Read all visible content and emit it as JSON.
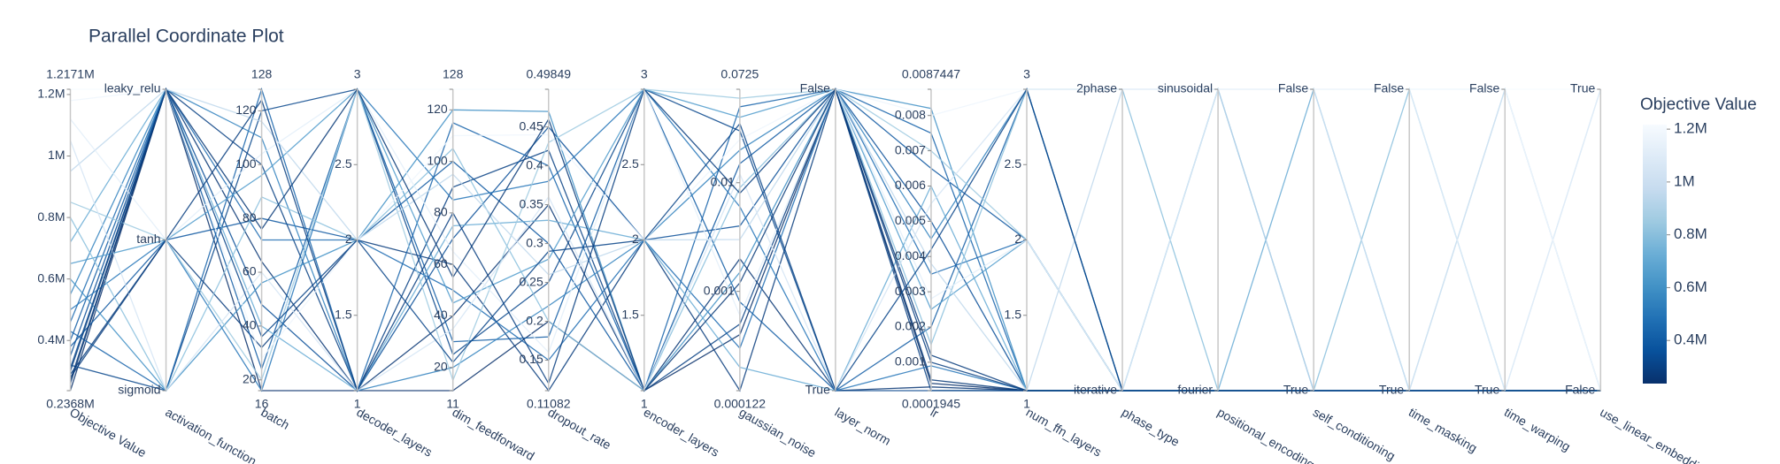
{
  "chart_data": {
    "type": "parcoords",
    "title": "Parallel Coordinate Plot",
    "colorscale": [
      "#08306b",
      "#08519c",
      "#2171b5",
      "#4292c6",
      "#6baed6",
      "#9ecae1",
      "#c6dbef",
      "#deebf7",
      "#f7fbff"
    ],
    "colorbar": {
      "title": "Objective Value"
    },
    "dimensions": [
      {
        "label": "Objective Value",
        "range": [
          {
            "value": 236800,
            "label": "0.2368M"
          },
          {
            "value": 1217100,
            "label": "1.2171M"
          }
        ],
        "ticks": [
          {
            "value": 400000,
            "label": "0.4M"
          },
          {
            "value": 600000,
            "label": "0.6M"
          },
          {
            "value": 800000,
            "label": "0.8M"
          },
          {
            "value": 1000000,
            "label": "1M"
          },
          {
            "value": 1200000,
            "label": "1.2M"
          }
        ]
      },
      {
        "label": "activation_function",
        "categories": [
          "sigmoid",
          "tanh",
          "leaky_relu"
        ]
      },
      {
        "label": "batch",
        "range": [
          16,
          128
        ],
        "ticks": [
          20,
          40,
          60,
          80,
          100,
          120
        ]
      },
      {
        "label": "decoder_layers",
        "range": [
          1,
          3
        ],
        "ticks": [
          1.5,
          2,
          2.5
        ]
      },
      {
        "label": "dim_feedforward",
        "range": [
          11,
          128
        ],
        "ticks": [
          20,
          40,
          60,
          80,
          100,
          120
        ]
      },
      {
        "label": "dropout_rate",
        "range": [
          0.11082,
          0.49849
        ],
        "ticks": [
          0.15,
          0.2,
          0.25,
          0.3,
          0.35,
          0.4,
          0.45
        ]
      },
      {
        "label": "encoder_layers",
        "range": [
          1,
          3
        ],
        "ticks": [
          1.5,
          2,
          2.5
        ]
      },
      {
        "label": "gaussian_noise",
        "range": [
          0.000122,
          0.0725
        ],
        "ticks": [
          0.001,
          0.01
        ],
        "log": true
      },
      {
        "label": "layer_norm",
        "categories": [
          "True",
          "False"
        ]
      },
      {
        "label": "lr",
        "range": [
          0.0001945,
          0.0087447
        ],
        "ticks": [
          0.001,
          0.002,
          0.003,
          0.004,
          0.005,
          0.006,
          0.007,
          0.008
        ]
      },
      {
        "label": "num_ffn_layers",
        "range": [
          1,
          3
        ],
        "ticks": [
          1.5,
          2,
          2.5
        ]
      },
      {
        "label": "phase_type",
        "categories": [
          "iterative",
          "2phase"
        ]
      },
      {
        "label": "positional_encoding",
        "categories": [
          "fourier",
          "sinusoidal"
        ]
      },
      {
        "label": "self_conditioning",
        "categories": [
          "True",
          "False"
        ]
      },
      {
        "label": "time_masking",
        "categories": [
          "True",
          "False"
        ]
      },
      {
        "label": "time_warping",
        "categories": [
          "True",
          "False"
        ]
      },
      {
        "label": "use_linear_embedding",
        "categories": [
          "False",
          "True"
        ]
      }
    ],
    "trials": [
      [
        236800,
        2,
        16,
        1,
        11,
        0.2,
        1,
        0.0004,
        1,
        0.0004,
        1,
        0,
        0,
        0,
        0,
        0,
        0
      ],
      [
        1217100,
        2,
        128,
        3,
        128,
        0.49849,
        3,
        0.0725,
        1,
        0.0087447,
        3,
        1,
        1,
        1,
        1,
        1,
        1
      ],
      [
        260000,
        2,
        64,
        1,
        40,
        0.35,
        1,
        0.002,
        0,
        0.0003,
        1,
        0,
        0,
        0,
        0,
        0,
        0
      ],
      [
        280000,
        1,
        32,
        2,
        60,
        0.11082,
        2,
        0.000122,
        1,
        0.0012,
        1,
        0,
        0,
        0,
        0,
        0,
        0
      ],
      [
        300000,
        2,
        100,
        1,
        90,
        0.42,
        1,
        0.0005,
        1,
        0.0002,
        1,
        0,
        0,
        0,
        0,
        0,
        0
      ],
      [
        320000,
        0,
        120,
        3,
        25,
        0.25,
        3,
        0.03,
        0,
        0.0001945,
        1,
        0,
        0,
        0,
        0,
        0,
        0
      ],
      [
        350000,
        2,
        48,
        1,
        70,
        0.45,
        2,
        0.004,
        1,
        0.005,
        1,
        0,
        0,
        0,
        0,
        0,
        0
      ],
      [
        380000,
        1,
        80,
        2,
        100,
        0.3,
        1,
        0.015,
        1,
        0.0065,
        2,
        0,
        0,
        0,
        0,
        0,
        0
      ],
      [
        400000,
        2,
        24,
        3,
        30,
        0.18,
        3,
        0.0008,
        0,
        0.002,
        3,
        0,
        0,
        0,
        0,
        0,
        0
      ],
      [
        430000,
        0,
        128,
        1,
        115,
        0.4,
        1,
        0.05,
        1,
        0.0075,
        1,
        0,
        0,
        0,
        0,
        0,
        0
      ],
      [
        460000,
        2,
        72,
        2,
        50,
        0.15,
        2,
        0.0003,
        1,
        0.0035,
        2,
        0,
        0,
        0,
        0,
        0,
        0
      ],
      [
        500000,
        1,
        16,
        3,
        85,
        0.38,
        3,
        0.006,
        0,
        0.0009,
        1,
        0,
        0,
        0,
        0,
        0,
        0
      ],
      [
        550000,
        2,
        110,
        1,
        20,
        0.22,
        2,
        0.02,
        1,
        0.0045,
        3,
        0,
        0,
        0,
        0,
        0,
        0
      ],
      [
        600000,
        0,
        56,
        2,
        120,
        0.47,
        1,
        0.0015,
        1,
        0.0082,
        1,
        0,
        0,
        0,
        0,
        0,
        0
      ],
      [
        650000,
        1,
        96,
        3,
        45,
        0.28,
        3,
        0.04,
        1,
        0.0025,
        2,
        0,
        1,
        0,
        0,
        0,
        0
      ],
      [
        720000,
        2,
        40,
        1,
        75,
        0.33,
        2,
        0.0002,
        0,
        0.006,
        1,
        0,
        0,
        1,
        0,
        0,
        0
      ],
      [
        800000,
        0,
        88,
        2,
        105,
        0.2,
        1,
        0.009,
        1,
        0.0015,
        3,
        1,
        0,
        0,
        1,
        0,
        0
      ],
      [
        850000,
        1,
        20,
        3,
        15,
        0.43,
        3,
        0.06,
        1,
        0.007,
        2,
        0,
        0,
        0,
        0,
        1,
        0
      ],
      [
        950000,
        2,
        116,
        2,
        95,
        0.26,
        2,
        0.003,
        1,
        0.0038,
        1,
        1,
        1,
        0,
        0,
        0,
        1
      ],
      [
        1050000,
        0,
        60,
        1,
        35,
        0.36,
        1,
        0.012,
        0,
        0.0055,
        3,
        1,
        1,
        1,
        0,
        1,
        0
      ],
      [
        1120000,
        1,
        104,
        3,
        65,
        0.16,
        3,
        0.0006,
        1,
        0.0028,
        2,
        0,
        1,
        1,
        1,
        0,
        1
      ],
      [
        1180000,
        2,
        28,
        2,
        110,
        0.44,
        2,
        0.025,
        1,
        0.008,
        3,
        1,
        1,
        1,
        1,
        1,
        0
      ],
      [
        270000,
        2,
        76,
        3,
        55,
        0.46,
        1,
        0.0012,
        1,
        0.0005,
        1,
        0,
        0,
        0,
        0,
        0,
        0
      ],
      [
        290000,
        1,
        124,
        1,
        80,
        0.12,
        3,
        0.008,
        1,
        0.001,
        1,
        0,
        0,
        0,
        0,
        0,
        0
      ],
      [
        310000,
        2,
        36,
        2,
        22,
        0.29,
        2,
        0.035,
        0,
        0.0042,
        3,
        0,
        0,
        0,
        0,
        0,
        0
      ]
    ]
  }
}
